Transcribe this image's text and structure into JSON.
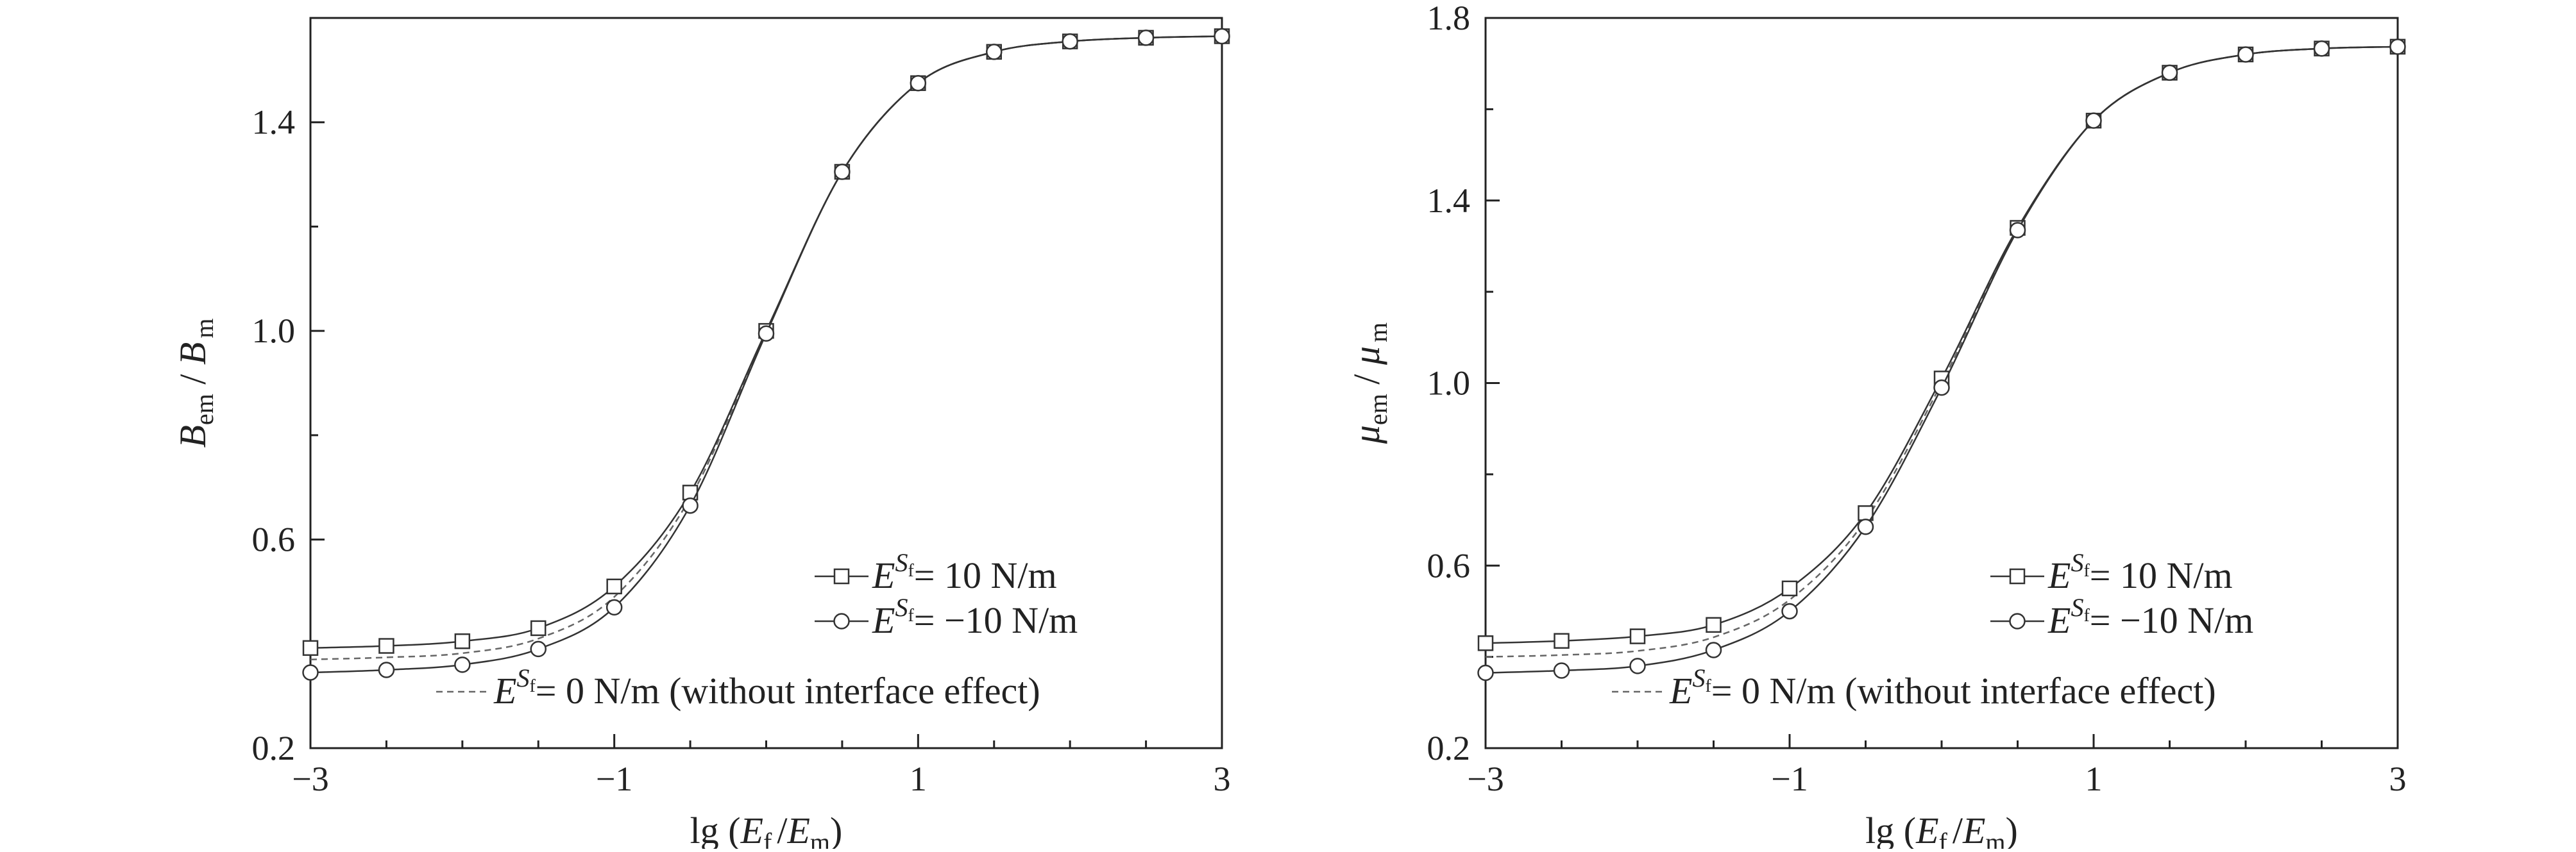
{
  "chart_data": [
    {
      "type": "line",
      "xlabel": {
        "prefix": "lg (",
        "v1": "E",
        "s1": "f",
        "sep": "/",
        "v2": "E",
        "s2": "m",
        "suffix": ")"
      },
      "ylabel": {
        "v1": "B",
        "s1": "em",
        "sep": "/",
        "v2": "B",
        "s2": "m"
      },
      "xlim": [
        -3,
        3
      ],
      "ylim": [
        0.2,
        1.6
      ],
      "x_ticks": [
        -3,
        -1,
        1,
        3
      ],
      "x_tick_labels": [
        "−3",
        "−1",
        "1",
        "3"
      ],
      "y_ticks": [
        0.2,
        0.6,
        1.0,
        1.4
      ],
      "y_tick_labels": [
        "0.2",
        "0.6",
        "1.0",
        "1.4"
      ],
      "y_minor_step": 0.2,
      "x_minor_step": 0.5,
      "grid": false,
      "legend_position": "bottom-right",
      "x": [
        -3,
        -2.5,
        -2,
        -1.5,
        -1,
        -0.5,
        0,
        0.5,
        1,
        1.5,
        2,
        2.5,
        3
      ],
      "series": [
        {
          "legend": {
            "base": "E",
            "sup": "S",
            "supsub": "f",
            "text": "= 10 N/m"
          },
          "marker": "square",
          "dash": "solid",
          "values": [
            0.392,
            0.396,
            0.405,
            0.43,
            0.51,
            0.69,
            1.0,
            1.305,
            1.475,
            1.535,
            1.555,
            1.562,
            1.565
          ]
        },
        {
          "legend": {
            "base": "E",
            "sup": "S",
            "supsub": "f",
            "text": "= −10 N/m"
          },
          "marker": "circle",
          "dash": "solid",
          "values": [
            0.345,
            0.35,
            0.36,
            0.39,
            0.47,
            0.665,
            0.995,
            1.305,
            1.475,
            1.535,
            1.555,
            1.562,
            1.565
          ]
        },
        {
          "legend": {
            "base": "E",
            "sup": "S",
            "supsub": "f",
            "text": "= 0 N/m (without interface effect)"
          },
          "marker": "none",
          "dash": "dashed",
          "values": [
            0.37,
            0.374,
            0.382,
            0.41,
            0.49,
            0.68,
            0.998,
            1.305,
            1.475,
            1.535,
            1.555,
            1.562,
            1.565
          ]
        }
      ]
    },
    {
      "type": "line",
      "xlabel": {
        "prefix": "lg (",
        "v1": "E",
        "s1": "f",
        "sep": "/",
        "v2": "E",
        "s2": "m",
        "suffix": ")"
      },
      "ylabel": {
        "v1": "μ",
        "s1": "em",
        "sep": "/",
        "v2": "μ",
        "s2": "m"
      },
      "xlim": [
        -3,
        3
      ],
      "ylim": [
        0.2,
        1.8
      ],
      "x_ticks": [
        -3,
        -1,
        1,
        3
      ],
      "x_tick_labels": [
        "−3",
        "−1",
        "1",
        "3"
      ],
      "y_ticks": [
        0.2,
        0.6,
        1.0,
        1.4,
        1.8
      ],
      "y_tick_labels": [
        "0.2",
        "0.6",
        "1.0",
        "1.4",
        "1.8"
      ],
      "y_minor_step": 0.2,
      "x_minor_step": 0.5,
      "grid": false,
      "legend_position": "bottom-right",
      "x": [
        -3,
        -2.5,
        -2,
        -1.5,
        -1,
        -0.5,
        0,
        0.5,
        1,
        1.5,
        2,
        2.5,
        3
      ],
      "series": [
        {
          "legend": {
            "base": "E",
            "sup": "S",
            "supsub": "f",
            "text": "= 10 N/m"
          },
          "marker": "square",
          "dash": "solid",
          "values": [
            0.43,
            0.435,
            0.445,
            0.47,
            0.55,
            0.715,
            1.01,
            1.34,
            1.575,
            1.68,
            1.72,
            1.733,
            1.737
          ]
        },
        {
          "legend": {
            "base": "E",
            "sup": "S",
            "supsub": "f",
            "text": "= −10 N/m"
          },
          "marker": "circle",
          "dash": "solid",
          "values": [
            0.365,
            0.37,
            0.38,
            0.415,
            0.5,
            0.685,
            0.99,
            1.335,
            1.575,
            1.68,
            1.72,
            1.733,
            1.737
          ]
        },
        {
          "legend": {
            "base": "E",
            "sup": "S",
            "supsub": "f",
            "text": "= 0 N/m (without interface effect)"
          },
          "marker": "none",
          "dash": "dashed",
          "values": [
            0.4,
            0.404,
            0.413,
            0.443,
            0.525,
            0.7,
            1.0,
            1.337,
            1.575,
            1.68,
            1.72,
            1.733,
            1.737
          ]
        }
      ]
    }
  ]
}
